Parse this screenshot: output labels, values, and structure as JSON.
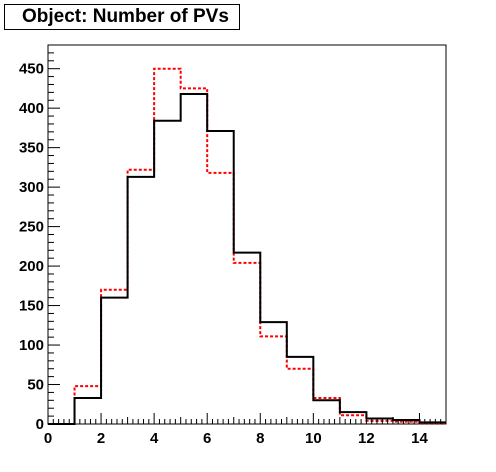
{
  "title": "Object: Number of PVs",
  "chart_data": {
    "type": "histogram",
    "title": "Object: Number of PVs",
    "xlabel": "",
    "ylabel": "",
    "xlim": [
      0,
      15
    ],
    "ylim": [
      0,
      480
    ],
    "x_ticks": [
      0,
      2,
      4,
      6,
      8,
      10,
      12,
      14
    ],
    "y_ticks": [
      0,
      50,
      100,
      150,
      200,
      250,
      300,
      350,
      400,
      450
    ],
    "bin_edges": [
      0,
      1,
      2,
      3,
      4,
      5,
      6,
      7,
      8,
      9,
      10,
      11,
      12,
      13,
      14,
      15
    ],
    "series": [
      {
        "style": "solid",
        "color": "#000000",
        "values": [
          0,
          33,
          160,
          313,
          384,
          418,
          371,
          217,
          129,
          85,
          30,
          15,
          7,
          5,
          2
        ]
      },
      {
        "style": "dashed",
        "color": "#ff0000",
        "values": [
          0,
          48,
          170,
          322,
          450,
          425,
          318,
          204,
          111,
          70,
          33,
          11,
          4,
          3,
          1
        ]
      }
    ],
    "grid": false,
    "legend": false
  }
}
